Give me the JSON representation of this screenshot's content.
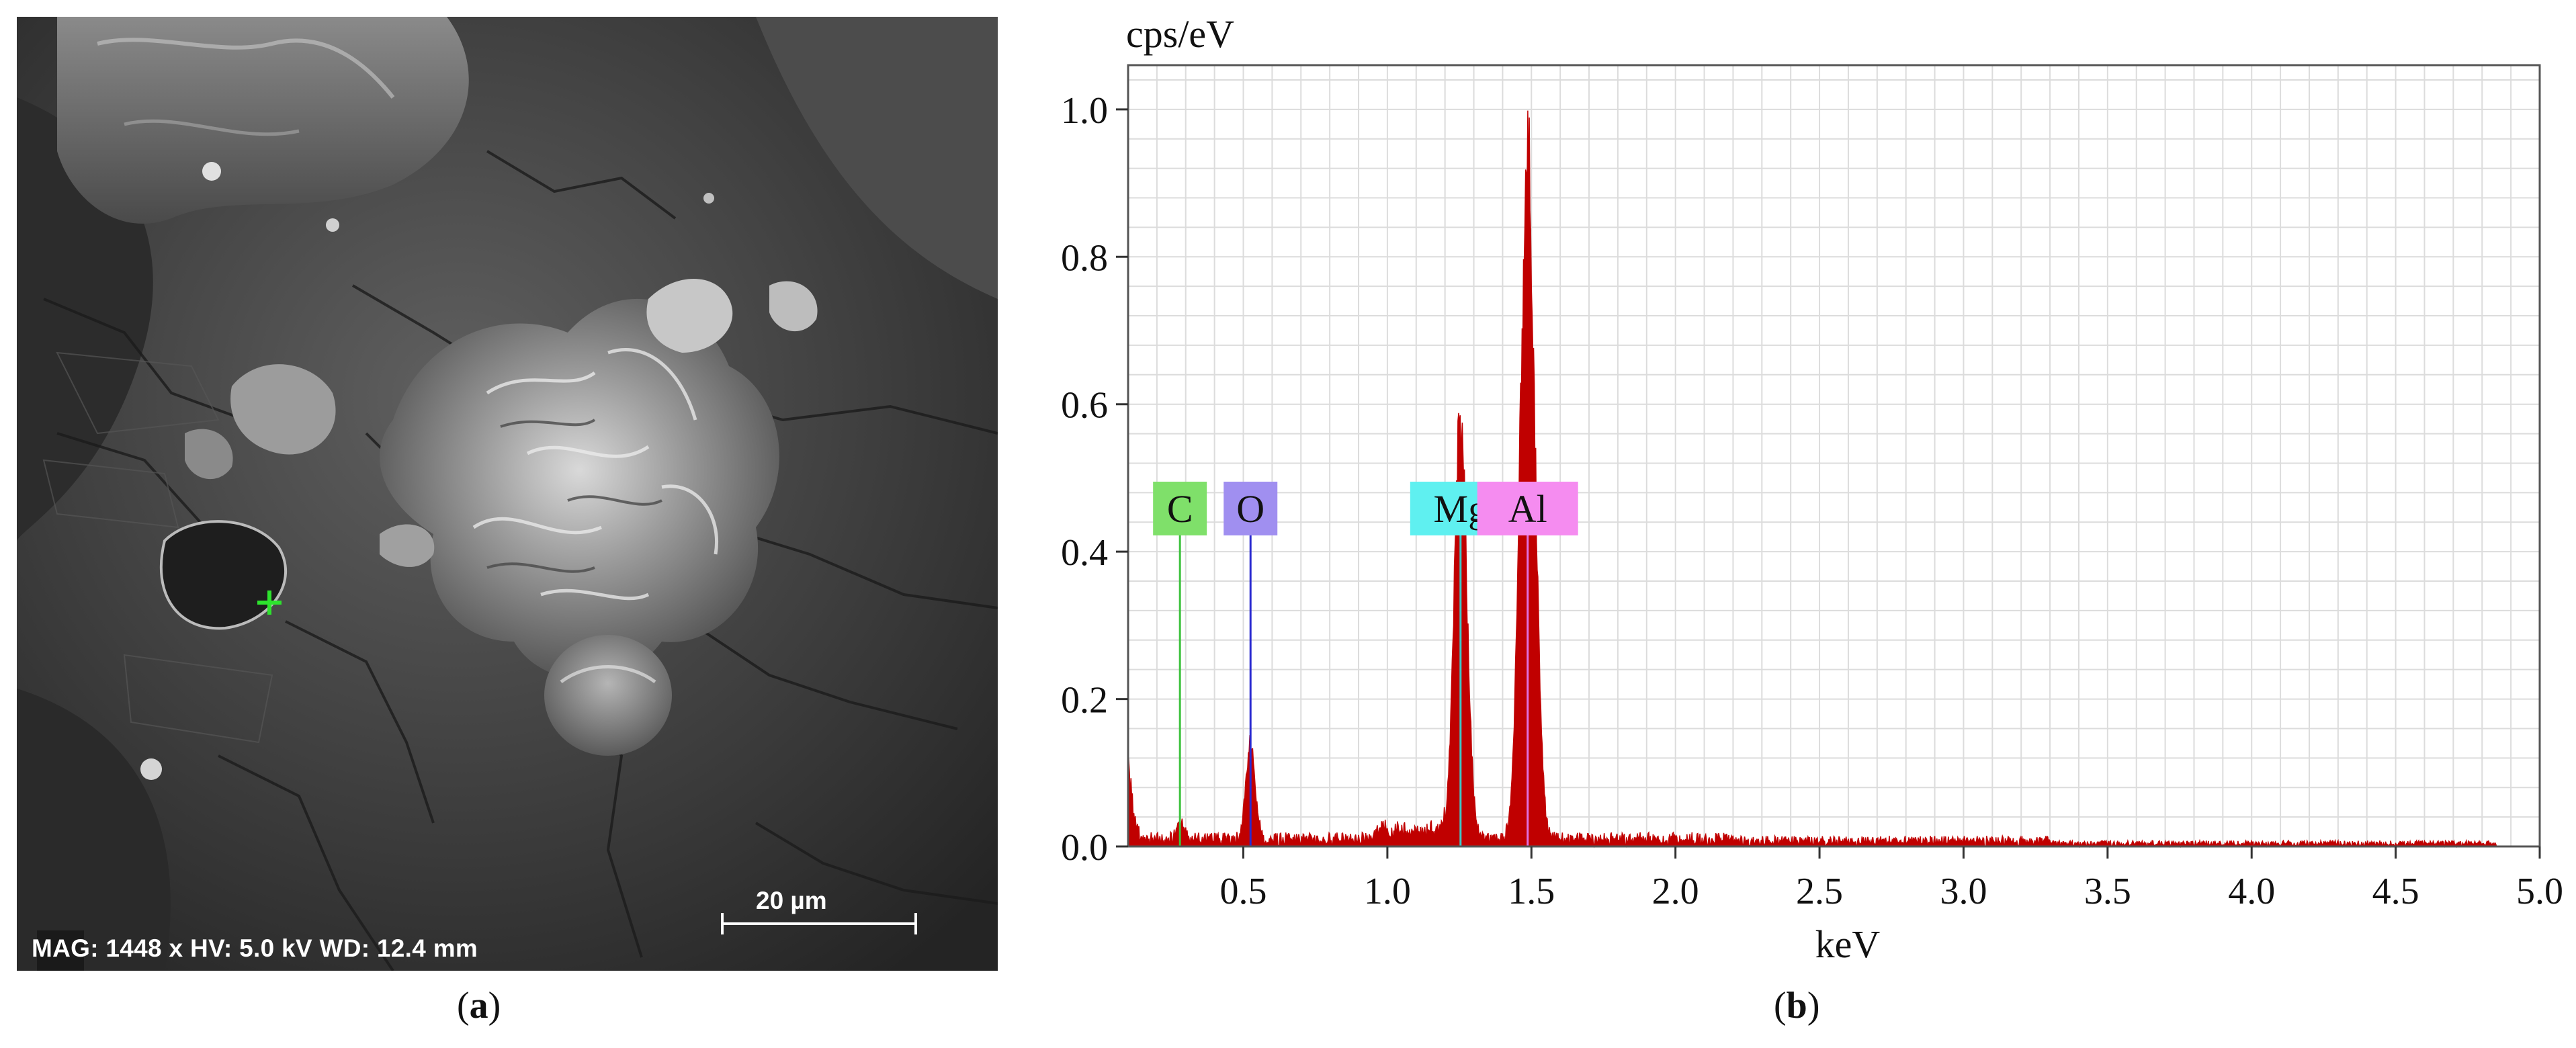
{
  "panel_a": {
    "caption_open": "(",
    "caption_letter": "a",
    "caption_close": ")",
    "info_text": "MAG: 1448 x HV: 5.0 kV WD: 12.4 mm",
    "scale_bar_label": "20 µm",
    "marker_color": "#2de32d"
  },
  "panel_b": {
    "caption_open": "(",
    "caption_letter": "b",
    "caption_close": ")"
  },
  "chart_data": {
    "type": "area",
    "title": "",
    "xlabel": "keV",
    "ylabel": "cps/eV",
    "xlim": [
      0.1,
      5.0
    ],
    "ylim": [
      0.0,
      1.06
    ],
    "grid": true,
    "series_color": "#c00000",
    "x_ticks": [
      "0.5",
      "1.0",
      "1.5",
      "2.0",
      "2.5",
      "3.0",
      "3.5",
      "4.0",
      "4.5",
      "5.0"
    ],
    "x_tick_values": [
      0.5,
      1.0,
      1.5,
      2.0,
      2.5,
      3.0,
      3.5,
      4.0,
      4.5,
      5.0
    ],
    "y_ticks": [
      "0.0",
      "0.2",
      "0.4",
      "0.6",
      "0.8",
      "1.0"
    ],
    "y_tick_values": [
      0.0,
      0.2,
      0.4,
      0.6,
      0.8,
      1.0
    ],
    "peaks": [
      {
        "element": "C",
        "energy": 0.28,
        "height": 0.03
      },
      {
        "element": "O",
        "energy": 0.525,
        "height": 0.14
      },
      {
        "element": "Mg",
        "energy": 1.254,
        "height": 0.62
      },
      {
        "element": "Al",
        "energy": 1.487,
        "height": 1.02
      }
    ],
    "element_markers": [
      {
        "label": "C",
        "energy": 0.28,
        "color": "#7fe06a",
        "line_color": "#3fc23f"
      },
      {
        "label": "O",
        "energy": 0.525,
        "color": "#a08ff0",
        "line_color": "#2a2ad0"
      },
      {
        "label": "Mg",
        "energy": 1.254,
        "color": "#5ff0f0",
        "line_color": "#40c8c8"
      },
      {
        "label": "Al",
        "energy": 1.487,
        "color": "#f58cf0",
        "line_color": "#e070e0"
      }
    ]
  }
}
